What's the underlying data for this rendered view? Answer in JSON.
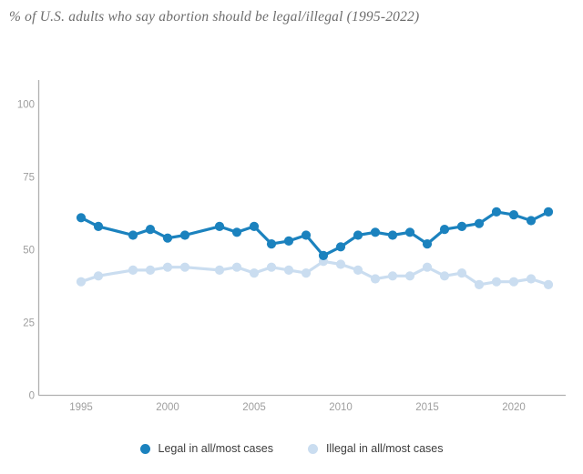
{
  "title": "% of U.S. adults who say abortion should be legal/illegal (1995-2022)",
  "legend": [
    {
      "label": "Legal in all/most cases",
      "color": "#1b82be"
    },
    {
      "label": "Illegal in all/most cases",
      "color": "#caddf0"
    }
  ],
  "chart_data": {
    "type": "line",
    "title": "% of U.S. adults who say abortion should be legal/illegal (1995-2022)",
    "x": [
      1995,
      1996,
      1998,
      1999,
      2000,
      2001,
      2003,
      2004,
      2005,
      2006,
      2007,
      2008,
      2009,
      2010,
      2011,
      2012,
      2013,
      2014,
      2015,
      2016,
      2017,
      2018,
      2019,
      2020,
      2021,
      2022
    ],
    "series": [
      {
        "name": "Legal in all/most cases",
        "color": "#1b82be",
        "values": [
          61,
          58,
          55,
          57,
          54,
          55,
          58,
          56,
          58,
          52,
          53,
          55,
          48,
          51,
          55,
          56,
          55,
          56,
          52,
          57,
          58,
          59,
          63,
          62,
          60,
          63
        ]
      },
      {
        "name": "Illegal in all/most cases",
        "color": "#caddf0",
        "values": [
          39,
          41,
          43,
          43,
          44,
          44,
          43,
          44,
          42,
          44,
          43,
          42,
          46,
          45,
          43,
          40,
          41,
          41,
          44,
          41,
          42,
          38,
          39,
          39,
          40,
          38
        ]
      }
    ],
    "xlabel": "",
    "ylabel": "",
    "ylim": [
      0,
      100
    ],
    "yticks": [
      0,
      25,
      50,
      75,
      100
    ],
    "xticks": [
      1995,
      2000,
      2005,
      2010,
      2015,
      2020
    ],
    "grid": false,
    "legend_position": "bottom",
    "axis_color": "#b0b0b0",
    "tick_label_color": "#9e9e9e"
  }
}
